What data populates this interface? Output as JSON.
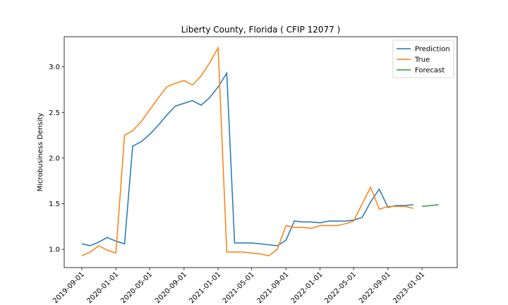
{
  "chart_data": {
    "type": "line",
    "title": "Liberty County, Florida ( CFIP 12077 )",
    "y_label": "Microbusiness Density",
    "series": [
      {
        "name": "Prediction",
        "color": "#1f77b4",
        "x": [
          "2019-09-01",
          "2019-10-01",
          "2019-11-01",
          "2019-12-01",
          "2020-01-01",
          "2020-02-01",
          "2020-03-01",
          "2020-04-01",
          "2020-05-01",
          "2020-06-01",
          "2020-07-01",
          "2020-08-01",
          "2020-09-01",
          "2020-10-01",
          "2020-11-01",
          "2020-12-01",
          "2021-01-01",
          "2021-02-01",
          "2021-03-01",
          "2021-04-01",
          "2021-05-01",
          "2021-06-01",
          "2021-07-01",
          "2021-08-01",
          "2021-09-01",
          "2021-10-01",
          "2021-11-01",
          "2021-12-01",
          "2022-01-01",
          "2022-02-01",
          "2022-03-01",
          "2022-04-01",
          "2022-05-01",
          "2022-06-01",
          "2022-07-01",
          "2022-08-01",
          "2022-09-01",
          "2022-10-01",
          "2022-11-01",
          "2022-12-01"
        ],
        "values": [
          1.06,
          1.04,
          1.08,
          1.13,
          1.09,
          1.06,
          2.13,
          2.18,
          2.26,
          2.36,
          2.47,
          2.57,
          2.6,
          2.63,
          2.58,
          2.66,
          2.78,
          2.93,
          1.07,
          1.07,
          1.07,
          1.06,
          1.05,
          1.04,
          1.1,
          1.31,
          1.3,
          1.3,
          1.29,
          1.31,
          1.31,
          1.31,
          1.32,
          1.35,
          1.52,
          1.66,
          1.46,
          1.48,
          1.48,
          1.49
        ]
      },
      {
        "name": "True",
        "color": "#ff7f0e",
        "x": [
          "2019-09-01",
          "2019-10-01",
          "2019-11-01",
          "2019-12-01",
          "2020-01-01",
          "2020-02-01",
          "2020-03-01",
          "2020-04-01",
          "2020-05-01",
          "2020-06-01",
          "2020-07-01",
          "2020-08-01",
          "2020-09-01",
          "2020-10-01",
          "2020-11-01",
          "2020-12-01",
          "2021-01-01",
          "2021-02-01",
          "2021-03-01",
          "2021-04-01",
          "2021-05-01",
          "2021-06-01",
          "2021-07-01",
          "2021-08-01",
          "2021-09-01",
          "2021-10-01",
          "2021-11-01",
          "2021-12-01",
          "2022-01-01",
          "2022-02-01",
          "2022-03-01",
          "2022-04-01",
          "2022-05-01",
          "2022-06-01",
          "2022-07-01",
          "2022-08-01",
          "2022-09-01",
          "2022-10-01",
          "2022-11-01",
          "2022-12-01"
        ],
        "values": [
          0.93,
          0.97,
          1.04,
          0.99,
          0.96,
          2.25,
          2.3,
          2.4,
          2.53,
          2.66,
          2.78,
          2.82,
          2.85,
          2.8,
          2.9,
          3.04,
          3.21,
          0.97,
          0.97,
          0.97,
          0.96,
          0.95,
          0.93,
          1.0,
          1.26,
          1.24,
          1.24,
          1.23,
          1.26,
          1.26,
          1.26,
          1.28,
          1.31,
          1.5,
          1.68,
          1.44,
          1.47,
          1.47,
          1.47,
          1.45
        ]
      },
      {
        "name": "Forecast",
        "color": "#2ca02c",
        "x": [
          "2023-01-01",
          "2023-02-01",
          "2023-03-01"
        ],
        "values": [
          1.47,
          1.48,
          1.49
        ]
      }
    ],
    "xlim": [
      "2019-06-30",
      "2023-05-07"
    ],
    "xticks": [
      "2019-09-01",
      "2020-01-01",
      "2020-05-01",
      "2020-09-01",
      "2021-01-01",
      "2021-05-01",
      "2021-09-01",
      "2022-01-01",
      "2022-05-01",
      "2022-09-01",
      "2023-01-01"
    ],
    "ylim": [
      0.8,
      3.33
    ],
    "yticks": [
      {
        "value": 1,
        "label": "1.0"
      },
      {
        "value": 1.5,
        "label": "1.5"
      },
      {
        "value": 2,
        "label": "2.0"
      },
      {
        "value": 2.5,
        "label": "2.5"
      },
      {
        "value": 3,
        "label": "3.0"
      }
    ],
    "legend": "upper right"
  }
}
